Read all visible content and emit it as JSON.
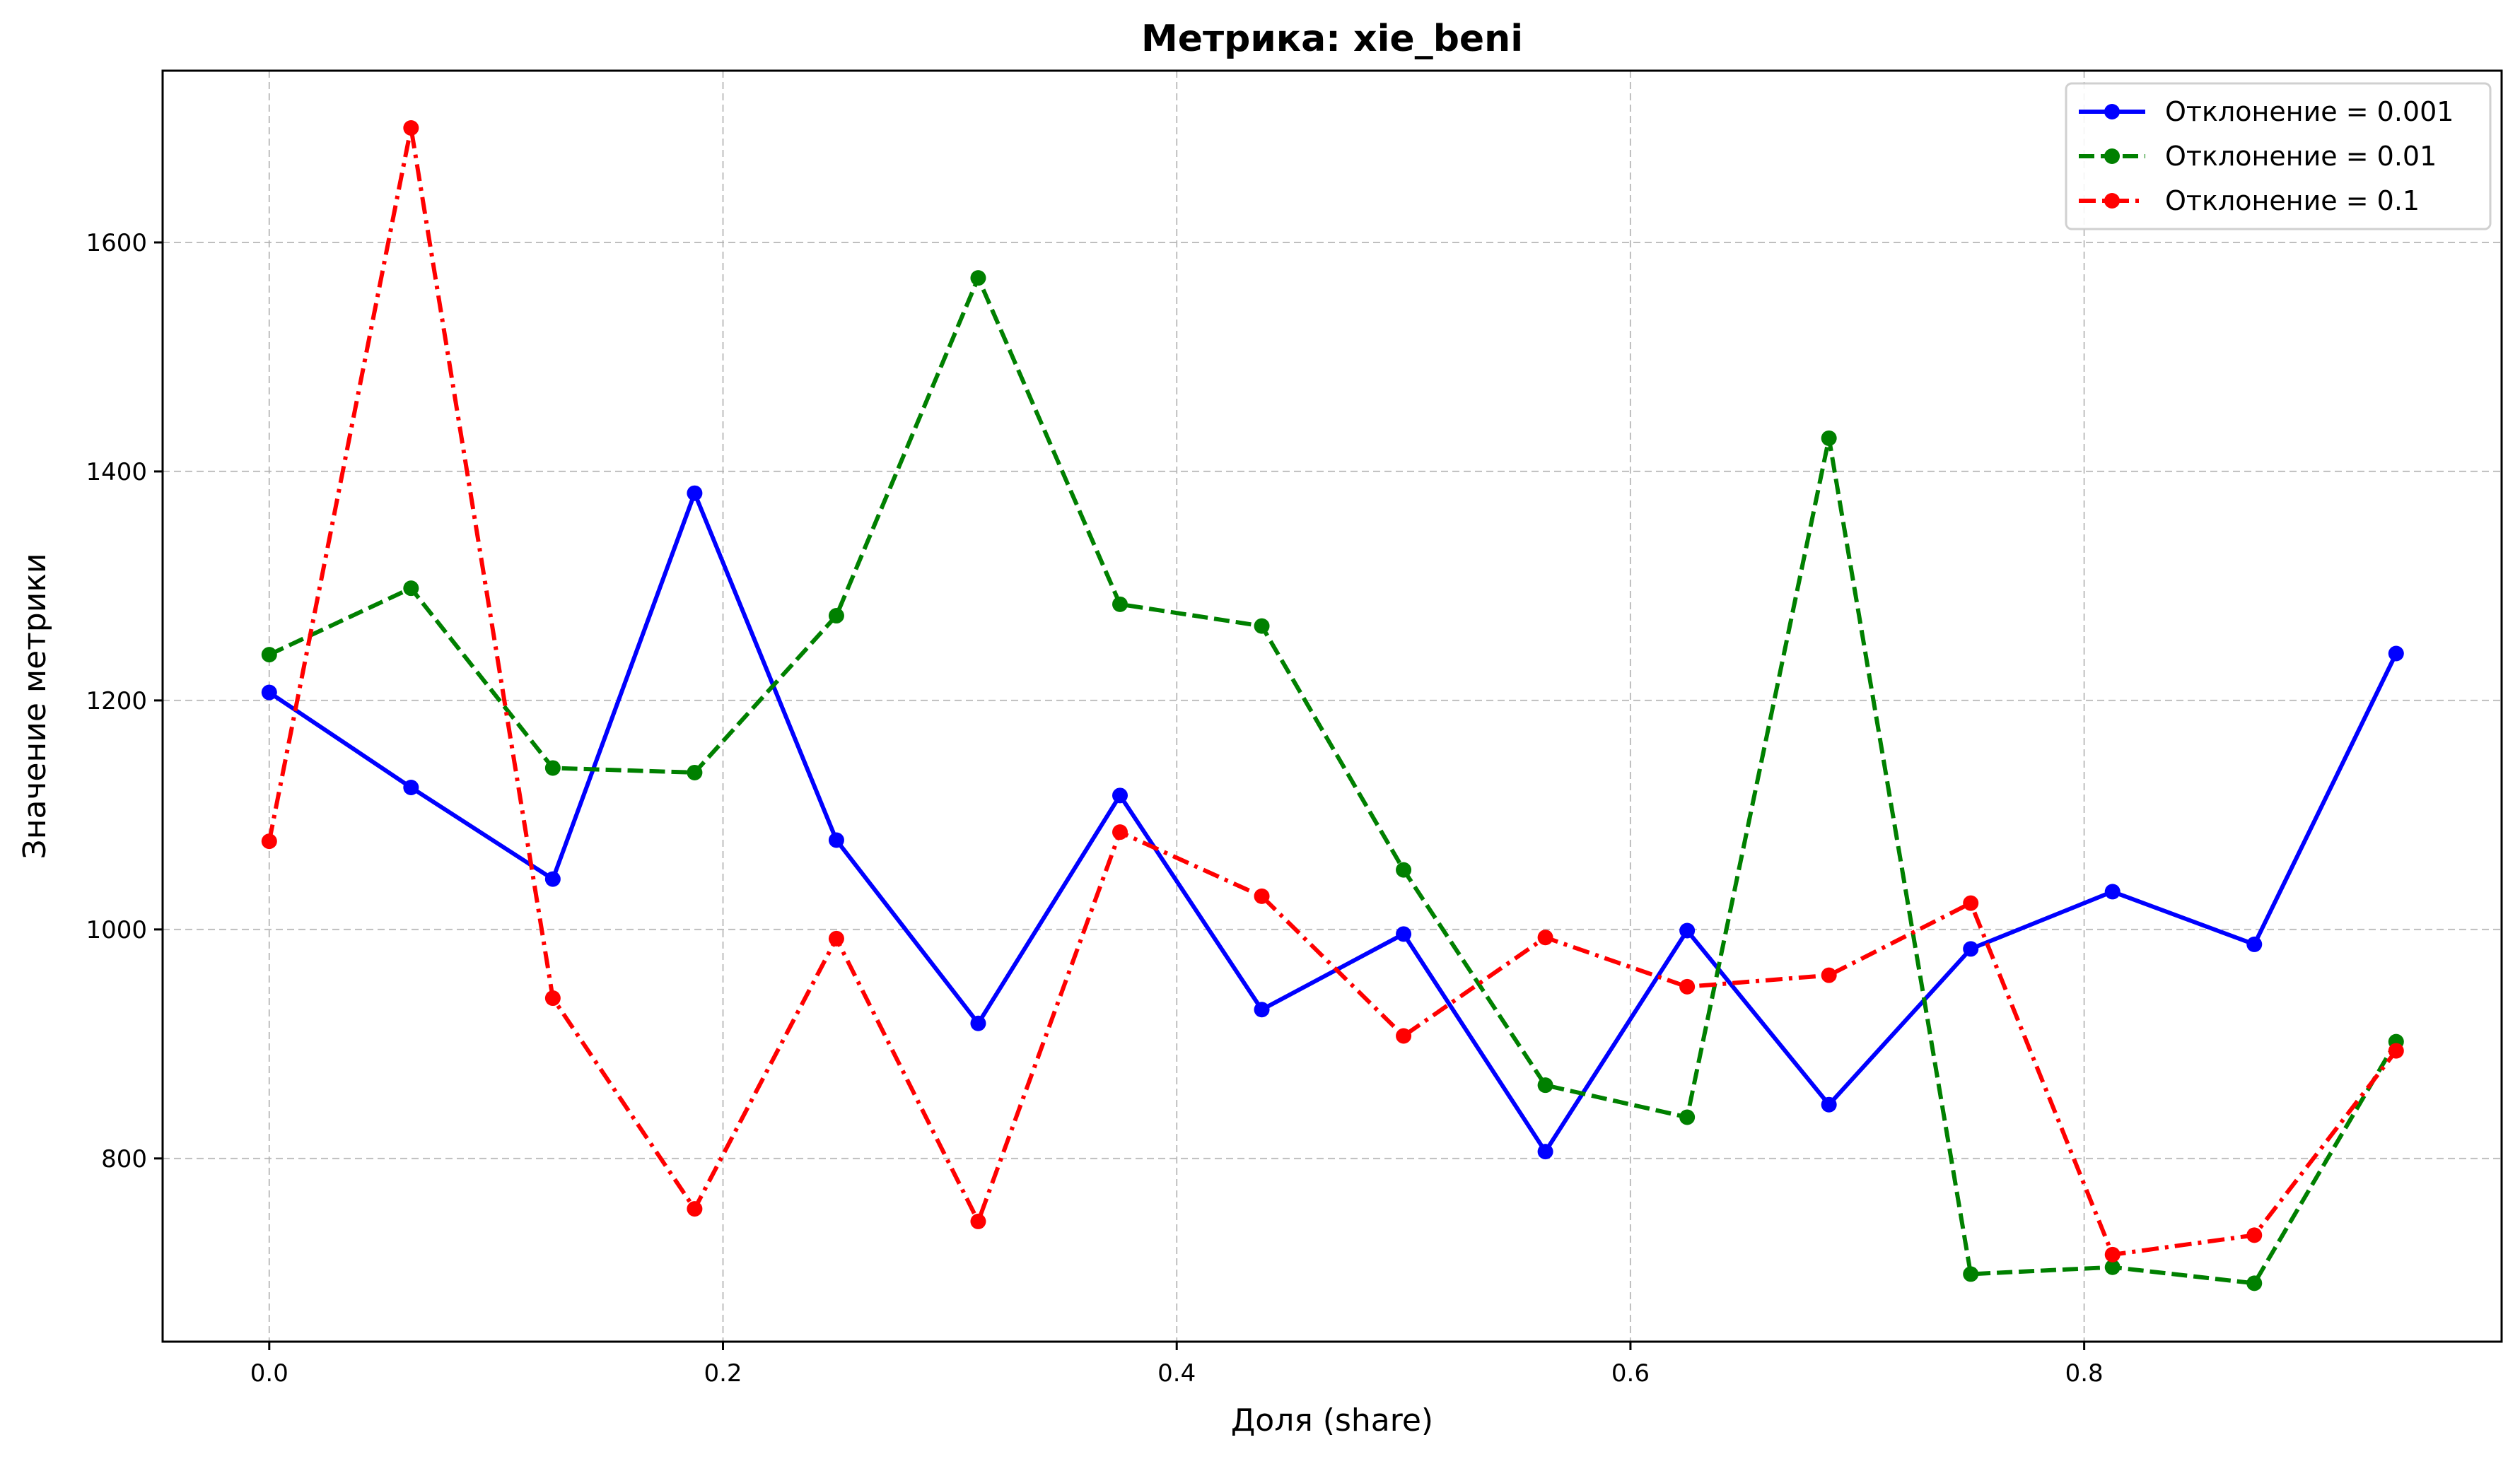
{
  "chart_data": {
    "type": "line",
    "title": "Метрика: xie_beni",
    "xlabel": "Доля (share)",
    "ylabel": "Значение метрики",
    "xlim": [
      -0.047,
      0.984
    ],
    "ylim": [
      640,
      1750
    ],
    "xticks": [
      0.0,
      0.2,
      0.4,
      0.6,
      0.8
    ],
    "xtick_labels": [
      "0.0",
      "0.2",
      "0.4",
      "0.6",
      "0.8"
    ],
    "yticks": [
      800,
      1000,
      1200,
      1400,
      1600
    ],
    "ytick_labels": [
      "800",
      "1000",
      "1200",
      "1400",
      "1600"
    ],
    "grid": true,
    "legend_position": "top-right",
    "x": [
      0.0,
      0.0625,
      0.125,
      0.1875,
      0.25,
      0.3125,
      0.375,
      0.4375,
      0.5,
      0.5625,
      0.625,
      0.6875,
      0.75,
      0.8125,
      0.875,
      0.9375
    ],
    "series": [
      {
        "name": "Отклонение = 0.001",
        "color": "#0000ff",
        "dash": "solid",
        "values": [
          1207,
          1124,
          1044,
          1381,
          1078,
          918,
          1117,
          930,
          996,
          806,
          999,
          847,
          983,
          1033,
          987,
          1241
        ]
      },
      {
        "name": "Отклонение = 0.01",
        "color": "#008000",
        "dash": "dashed",
        "values": [
          1240,
          1298,
          1141,
          1137,
          1274,
          1569,
          1284,
          1265,
          1052,
          864,
          836,
          1429,
          699,
          705,
          691,
          902
        ]
      },
      {
        "name": "Отклонение = 0.1",
        "color": "#ff0000",
        "dash": "dashdot",
        "values": [
          1077,
          1700,
          940,
          756,
          992,
          745,
          1085,
          1029,
          907,
          993,
          950,
          960,
          1023,
          716,
          733,
          894
        ]
      }
    ]
  }
}
